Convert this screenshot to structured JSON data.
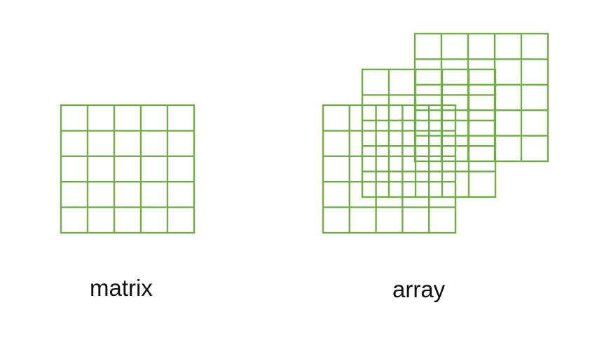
{
  "labels": {
    "matrix": "matrix",
    "array": "array"
  },
  "style": {
    "grid_color": "#70ad47",
    "background": "#ffffff"
  },
  "grids": {
    "matrix": {
      "rows": 5,
      "cols": 5
    },
    "array_layers": [
      {
        "rows": 5,
        "cols": 5,
        "depth": "front"
      },
      {
        "rows": 5,
        "cols": 5,
        "depth": "middle"
      },
      {
        "rows": 5,
        "cols": 5,
        "depth": "back"
      }
    ]
  }
}
